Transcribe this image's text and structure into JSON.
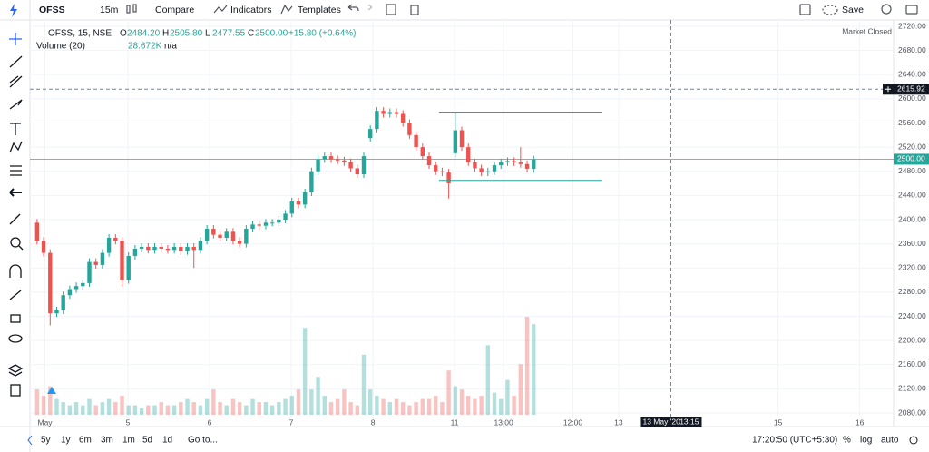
{
  "toolbar": {
    "symbol": "OFSS",
    "interval": "15m",
    "items": [
      "Compare",
      "Indicators",
      "Templates"
    ],
    "save": "Save"
  },
  "chart_data": {
    "type": "candlestick",
    "legend": {
      "symbol": "OFSS, 15, NSE",
      "fields": [
        {
          "label": "O",
          "value": "2484.20"
        },
        {
          "label": "H",
          "value": "2505.80"
        },
        {
          "label": "L",
          "value": "2477.55"
        },
        {
          "label": "C",
          "value": "2500.00"
        }
      ],
      "change": "+15.80 (+0.64%)",
      "volume_title": "Volume (20)",
      "volume_value": "28.672K",
      "volume_ma": "n/a"
    },
    "status": "Market Closed",
    "x": [
      0,
      1,
      2,
      3,
      4,
      5,
      6,
      7,
      8,
      9,
      10,
      11,
      12,
      13,
      14,
      15,
      16,
      17,
      18,
      19,
      20,
      21,
      22,
      23,
      24,
      25,
      26,
      27,
      28,
      29,
      30,
      31,
      32,
      33,
      34,
      35,
      36,
      37,
      38,
      39,
      40,
      41,
      42,
      43,
      44,
      45,
      46,
      47,
      48,
      49,
      50,
      51,
      52,
      53,
      54,
      55,
      56,
      57,
      58,
      59,
      60,
      61,
      62,
      63,
      64,
      65,
      66,
      67,
      68,
      69,
      70,
      71,
      72,
      73,
      74,
      75,
      76
    ],
    "open": [
      2395,
      2365,
      2345,
      2245,
      2250,
      2275,
      2285,
      2290,
      2295,
      2330,
      2325,
      2345,
      2370,
      2365,
      2300,
      2340,
      2352,
      2355,
      2350,
      2355,
      2352,
      2350,
      2355,
      2348,
      2355,
      2350,
      2365,
      2385,
      2375,
      2370,
      2380,
      2365,
      2360,
      2385,
      2392,
      2390,
      2395,
      2395,
      2400,
      2410,
      2430,
      2425,
      2445,
      2480,
      2500,
      2505,
      2500,
      2498,
      2495,
      2485,
      2475,
      2535,
      2550,
      2580,
      2575,
      2578,
      2575,
      2560,
      2540,
      2520,
      2505,
      2490,
      2480,
      2478,
      2510,
      2548,
      2520,
      2495,
      2485,
      2478,
      2480,
      2490,
      2495,
      2497,
      2495,
      2492,
      2484.2
    ],
    "high": [
      2401,
      2371,
      2351,
      2256,
      2281,
      2291,
      2296,
      2301,
      2336,
      2336,
      2351,
      2376,
      2376,
      2371,
      2346,
      2358,
      2361,
      2361,
      2361,
      2361,
      2358,
      2361,
      2361,
      2361,
      2361,
      2371,
      2391,
      2391,
      2381,
      2386,
      2386,
      2371,
      2391,
      2398,
      2398,
      2401,
      2401,
      2406,
      2416,
      2436,
      2436,
      2451,
      2486,
      2506,
      2511,
      2511,
      2506,
      2504,
      2501,
      2491,
      2511,
      2556,
      2586,
      2586,
      2584,
      2584,
      2581,
      2566,
      2546,
      2526,
      2511,
      2496,
      2486,
      2484,
      2578,
      2554,
      2526,
      2501,
      2491,
      2486,
      2496,
      2501,
      2503,
      2503,
      2520,
      2498,
      2505.8
    ],
    "low": [
      2359,
      2339,
      2225,
      2239,
      2244,
      2269,
      2279,
      2284,
      2289,
      2319,
      2319,
      2339,
      2359,
      2290,
      2294,
      2334,
      2346,
      2344,
      2344,
      2346,
      2344,
      2344,
      2342,
      2342,
      2320,
      2344,
      2359,
      2369,
      2364,
      2364,
      2359,
      2354,
      2354,
      2379,
      2384,
      2384,
      2389,
      2389,
      2394,
      2404,
      2419,
      2419,
      2439,
      2474,
      2494,
      2494,
      2492,
      2489,
      2479,
      2469,
      2469,
      2529,
      2544,
      2569,
      2569,
      2569,
      2554,
      2534,
      2514,
      2499,
      2484,
      2474,
      2472,
      2435,
      2504,
      2514,
      2489,
      2479,
      2472,
      2472,
      2474,
      2484,
      2489,
      2489,
      2486,
      2478,
      2477.55
    ],
    "close": [
      2365,
      2345,
      2245,
      2250,
      2275,
      2285,
      2290,
      2295,
      2330,
      2325,
      2345,
      2370,
      2365,
      2300,
      2340,
      2352,
      2355,
      2350,
      2355,
      2352,
      2350,
      2355,
      2348,
      2355,
      2350,
      2365,
      2385,
      2375,
      2370,
      2380,
      2365,
      2360,
      2385,
      2392,
      2390,
      2395,
      2395,
      2400,
      2410,
      2430,
      2425,
      2445,
      2480,
      2500,
      2505,
      2500,
      2498,
      2495,
      2485,
      2475,
      2505,
      2550,
      2580,
      2575,
      2578,
      2575,
      2560,
      2540,
      2520,
      2505,
      2490,
      2480,
      2478,
      2460,
      2548,
      2520,
      2495,
      2485,
      2478,
      2480,
      2490,
      2495,
      2497,
      2495,
      2492,
      2484.2,
      2500
    ],
    "volume": [
      8,
      6,
      9,
      5,
      4,
      3,
      4,
      3,
      5,
      3,
      4,
      5,
      4,
      6,
      3,
      3,
      2,
      3,
      3,
      4,
      3,
      3,
      4,
      5,
      4,
      3,
      5,
      8,
      4,
      3,
      5,
      4,
      3,
      5,
      4,
      4,
      3,
      4,
      5,
      6,
      8,
      27.5,
      8,
      12,
      6,
      4,
      5,
      8,
      4,
      3,
      19,
      8,
      6,
      5,
      4,
      5,
      4,
      3,
      4,
      5,
      5,
      6,
      4,
      14,
      9,
      8,
      6,
      5,
      6,
      22,
      7,
      5,
      11,
      6,
      16,
      31,
      28.672
    ],
    "up_color": "#26a69a",
    "down_color": "#ef5350",
    "xlim": [
      -0.4,
      129.7
    ],
    "xticks": [
      {
        "value": 1.2,
        "label": "May"
      },
      {
        "value": 13.9,
        "label": "5"
      },
      {
        "value": 26.4,
        "label": "6"
      },
      {
        "value": 38.9,
        "label": "7"
      },
      {
        "value": 51.4,
        "label": "8"
      },
      {
        "value": 63.9,
        "label": "11"
      },
      {
        "value": 71.4,
        "label": "13:00"
      },
      {
        "value": 82,
        "label": "12:00"
      },
      {
        "value": 89,
        "label": "13"
      },
      {
        "value": 113.4,
        "label": "15"
      },
      {
        "value": 125.9,
        "label": "16"
      }
    ],
    "ylim": [
      2080,
      2720
    ],
    "yticks": [
      {
        "value": 2080,
        "label": "2080.00"
      },
      {
        "value": 2120,
        "label": "2120.00"
      },
      {
        "value": 2160,
        "label": "2160.00"
      },
      {
        "value": 2200,
        "label": "2200.00"
      },
      {
        "value": 2240,
        "label": "2240.00"
      },
      {
        "value": 2280,
        "label": "2280.00"
      },
      {
        "value": 2320,
        "label": "2320.00"
      },
      {
        "value": 2360,
        "label": "2360.00"
      },
      {
        "value": 2400,
        "label": "2400.00"
      },
      {
        "value": 2440,
        "label": "2440.00"
      },
      {
        "value": 2480,
        "label": "2480.00"
      },
      {
        "value": 2520,
        "label": "2520.00"
      },
      {
        "value": 2560,
        "label": "2560.00"
      },
      {
        "value": 2600,
        "label": "2600.00"
      },
      {
        "value": 2640,
        "label": "2640.00"
      },
      {
        "value": 2680,
        "label": "2680.00"
      },
      {
        "value": 2720,
        "label": "2720.00"
      }
    ],
    "grid": true,
    "price_line": {
      "value": 2500,
      "label": "2500.00"
    },
    "crosshair": {
      "value": 2615.92,
      "label": "2615.92",
      "x": 97,
      "date": "13 May '20",
      "time": "13:15"
    },
    "drawings": [
      {
        "value": 2578,
        "x": [
          61.5,
          86.5
        ]
      },
      {
        "value": 2465,
        "x": [
          61.5,
          86.5
        ]
      }
    ]
  },
  "bottom_bar": {
    "ranges": [
      "5y",
      "1y",
      "6m",
      "3m",
      "1m",
      "5d",
      "1d"
    ],
    "goto": "Go to...",
    "clock": "17:20:50 (UTC+5:30)",
    "options": [
      "%",
      "log",
      "auto"
    ]
  }
}
